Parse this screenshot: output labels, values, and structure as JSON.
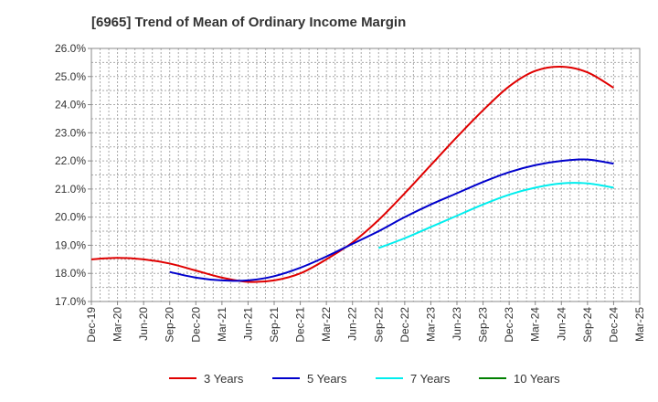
{
  "chart_data": {
    "type": "line",
    "title": "[6965]  Trend of Mean of Ordinary Income Margin",
    "xlabel": "",
    "ylabel": "",
    "grid": true,
    "legend_position": "bottom",
    "ylim": [
      17.0,
      26.0
    ],
    "y_ticks": [
      "17.0%",
      "18.0%",
      "19.0%",
      "20.0%",
      "21.0%",
      "22.0%",
      "23.0%",
      "24.0%",
      "25.0%",
      "26.0%"
    ],
    "x_ticks": [
      "Dec-19",
      "Mar-20",
      "Jun-20",
      "Sep-20",
      "Dec-20",
      "Mar-21",
      "Jun-21",
      "Sep-21",
      "Dec-21",
      "Mar-22",
      "Jun-22",
      "Sep-22",
      "Dec-22",
      "Mar-23",
      "Jun-23",
      "Sep-23",
      "Dec-23",
      "Mar-24",
      "Jun-24",
      "Sep-24",
      "Dec-24",
      "Mar-25"
    ],
    "x": [
      "Dec-19",
      "Mar-20",
      "Jun-20",
      "Sep-20",
      "Dec-20",
      "Mar-21",
      "Jun-21",
      "Sep-21",
      "Dec-21",
      "Mar-22",
      "Jun-22",
      "Sep-22",
      "Dec-22",
      "Mar-23",
      "Jun-23",
      "Sep-23",
      "Dec-23",
      "Mar-24",
      "Jun-24",
      "Sep-24",
      "Dec-24"
    ],
    "series": [
      {
        "name": "3 Years",
        "color": "#e00000",
        "values": [
          18.5,
          18.55,
          18.5,
          18.35,
          18.1,
          17.85,
          17.7,
          17.75,
          18.0,
          18.5,
          19.1,
          19.9,
          20.85,
          21.85,
          22.85,
          23.8,
          24.65,
          25.2,
          25.35,
          25.15,
          24.6
        ]
      },
      {
        "name": "5 Years",
        "color": "#0000cc",
        "values": [
          null,
          null,
          null,
          18.05,
          17.85,
          17.75,
          17.75,
          17.9,
          18.2,
          18.6,
          19.05,
          19.5,
          20.0,
          20.45,
          20.85,
          21.25,
          21.6,
          21.85,
          22.0,
          22.05,
          21.9
        ]
      },
      {
        "name": "7 Years",
        "color": "#00eeee",
        "values": [
          null,
          null,
          null,
          null,
          null,
          null,
          null,
          null,
          null,
          null,
          null,
          18.9,
          19.25,
          19.65,
          20.05,
          20.45,
          20.8,
          21.05,
          21.2,
          21.2,
          21.05
        ]
      },
      {
        "name": "10 Years",
        "color": "#008000",
        "values": [
          null,
          null,
          null,
          null,
          null,
          null,
          null,
          null,
          null,
          null,
          null,
          null,
          null,
          null,
          null,
          null,
          null,
          null,
          null,
          null,
          null
        ]
      }
    ]
  }
}
